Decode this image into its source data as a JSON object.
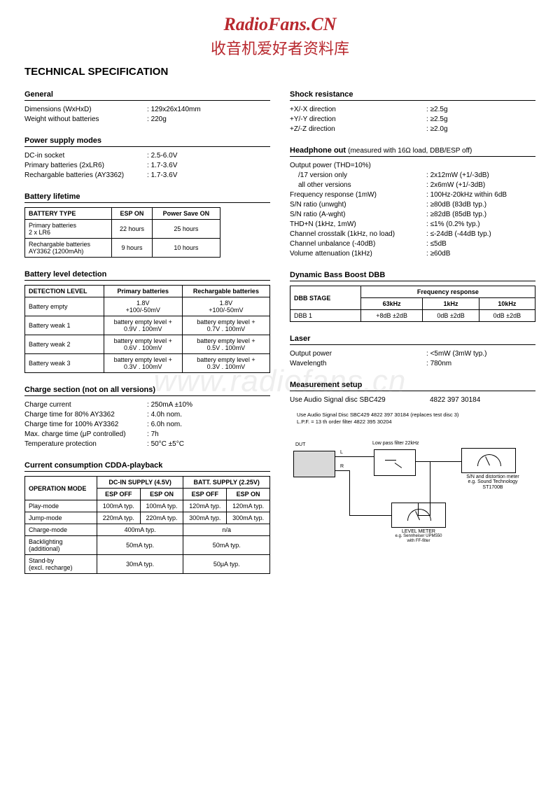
{
  "header": {
    "logo": "RadioFans.CN",
    "cn": "收音机爱好者资料库"
  },
  "title": "TECHNICAL SPECIFICATION",
  "watermark": "www.radiofans.cn",
  "left": {
    "general": {
      "title": "General",
      "rows": [
        {
          "l": "Dimensions (WxHxD)",
          "v": "129x26x140mm"
        },
        {
          "l": "Weight without batteries",
          "v": "220g"
        }
      ]
    },
    "power": {
      "title": "Power supply modes",
      "rows": [
        {
          "l": "DC-in socket",
          "v": "2.5-6.0V"
        },
        {
          "l": "Primary batteries (2xLR6)",
          "v": "1.7-3.6V"
        },
        {
          "l": "Rechargable batteries (AY3362)",
          "v": "1.7-3.6V"
        }
      ]
    },
    "batt_life": {
      "title": "Battery lifetime",
      "headers": [
        "BATTERY TYPE",
        "ESP ON",
        "Power Save ON"
      ],
      "rows": [
        [
          "Primary batteries\n2 x LR6",
          "22 hours",
          "25 hours"
        ],
        [
          "Rechargable batteries\nAY3362 (1200mAh)",
          "9 hours",
          "10 hours"
        ]
      ]
    },
    "batt_detect": {
      "title": "Battery level detection",
      "headers": [
        "DETECTION LEVEL",
        "Primary batteries",
        "Rechargable batteries"
      ],
      "rows": [
        [
          "Battery empty",
          "1.8V\n+100/-50mV",
          "1.8V\n+100/-50mV"
        ],
        [
          "Battery weak 1",
          "battery empty level +\n0.9V . 100mV",
          "battery empty level +\n0.7V . 100mV"
        ],
        [
          "Battery weak 2",
          "battery empty level +\n0.6V . 100mV",
          "battery empty level +\n0.5V . 100mV"
        ],
        [
          "Battery weak 3",
          "battery empty level +\n0.3V . 100mV",
          "battery empty level +\n0.3V . 100mV"
        ]
      ]
    },
    "charge": {
      "title": "Charge section (not on all versions)",
      "rows": [
        {
          "l": "Charge current",
          "v": "250mA ±10%"
        },
        {
          "l": "Charge time for 80% AY3362",
          "v": "4.0h nom."
        },
        {
          "l": "Charge time for 100% AY3362",
          "v": "6.0h nom."
        },
        {
          "l": "Max. charge time (μP controlled)",
          "v": "7h"
        },
        {
          "l": "Temperature protection",
          "v": "50°C ±5°C"
        }
      ]
    },
    "current": {
      "title": "Current consumption CDDA-playback",
      "h1": [
        "OPERATION MODE",
        "DC-IN SUPPLY (4.5V)",
        "BATT. SUPPLY (2.25V)"
      ],
      "h2": [
        "ESP OFF",
        "ESP ON",
        "ESP OFF",
        "ESP ON"
      ],
      "rows": [
        [
          "Play-mode",
          "100mA typ.",
          "100mA typ.",
          "120mA typ.",
          "120mA typ."
        ],
        [
          "Jump-mode",
          "220mA typ.",
          "220mA typ.",
          "300mA typ.",
          "300mA typ."
        ]
      ],
      "merged": [
        [
          "Charge-mode",
          "400mA typ.",
          "n/a"
        ],
        [
          "Backlighting\n(additional)",
          "50mA typ.",
          "50mA typ."
        ],
        [
          "Stand-by\n(excl. recharge)",
          "30mA typ.",
          "50μA typ."
        ]
      ]
    }
  },
  "right": {
    "shock": {
      "title": "Shock resistance",
      "rows": [
        {
          "l": "+X/-X direction",
          "v": "≥2.5g"
        },
        {
          "l": "+Y/-Y direction",
          "v": "≥2.5g"
        },
        {
          "l": "+Z/-Z direction",
          "v": "≥2.0g"
        }
      ]
    },
    "headphone": {
      "title": "Headphone out",
      "note": "(measured with 16Ω load, DBB/ESP off)",
      "rows": [
        {
          "l": "Output power (THD=10%)",
          "v": "",
          "plain": true
        },
        {
          "l": "/17 version only",
          "v": "2x12mW (+1/-3dB)",
          "indent": true
        },
        {
          "l": "all other versions",
          "v": "2x6mW (+1/-3dB)",
          "indent": true
        },
        {
          "l": "Frequency response (1mW)",
          "v": "100Hz-20kHz within 6dB"
        },
        {
          "l": "S/N ratio (unwght)",
          "v": "≥80dB (83dB typ.)"
        },
        {
          "l": "S/N ratio (A-wght)",
          "v": "≥82dB (85dB typ.)"
        },
        {
          "l": "THD+N (1kHz, 1mW)",
          "v": "≤1% (0.2% typ.)"
        },
        {
          "l": "Channel crosstalk (1kHz, no load)",
          "v": "≤-24dB (-44dB typ.)"
        },
        {
          "l": "Channel unbalance (-40dB)",
          "v": "≤5dB"
        },
        {
          "l": "Volume attenuation (1kHz)",
          "v": "≥60dB"
        }
      ]
    },
    "dbb": {
      "title": "Dynamic Bass Boost DBB",
      "h1": [
        "DBB STAGE",
        "Frequency response"
      ],
      "h2": [
        "63kHz",
        "1kHz",
        "10kHz"
      ],
      "row": [
        "DBB 1",
        "+8dB ±2dB",
        "0dB ±2dB",
        "0dB ±2dB"
      ]
    },
    "laser": {
      "title": "Laser",
      "rows": [
        {
          "l": "Output power",
          "v": "<5mW (3mW typ.)"
        },
        {
          "l": "Wavelength",
          "v": "780nm"
        }
      ]
    },
    "measure": {
      "title": "Measurement setup",
      "text1": "Use Audio Signal disc SBC429",
      "text2": "4822 397 30184",
      "note1": "Use Audio Signal Disc SBC429      4822 397 30184 (replaces test disc 3)",
      "note2": "L.P.F. = 13 th order filter  4822 395 30204",
      "dut": "DUT",
      "lpf": "Low pass filter 22kHz",
      "sn": "S/N and distortion meter\ne.g. Sound Technology ST1700B",
      "lvl": "LEVEL METER",
      "lvl2": "e.g. Sennheiser UPM550\nwith FF-filter",
      "L": "L",
      "R": "R"
    }
  }
}
